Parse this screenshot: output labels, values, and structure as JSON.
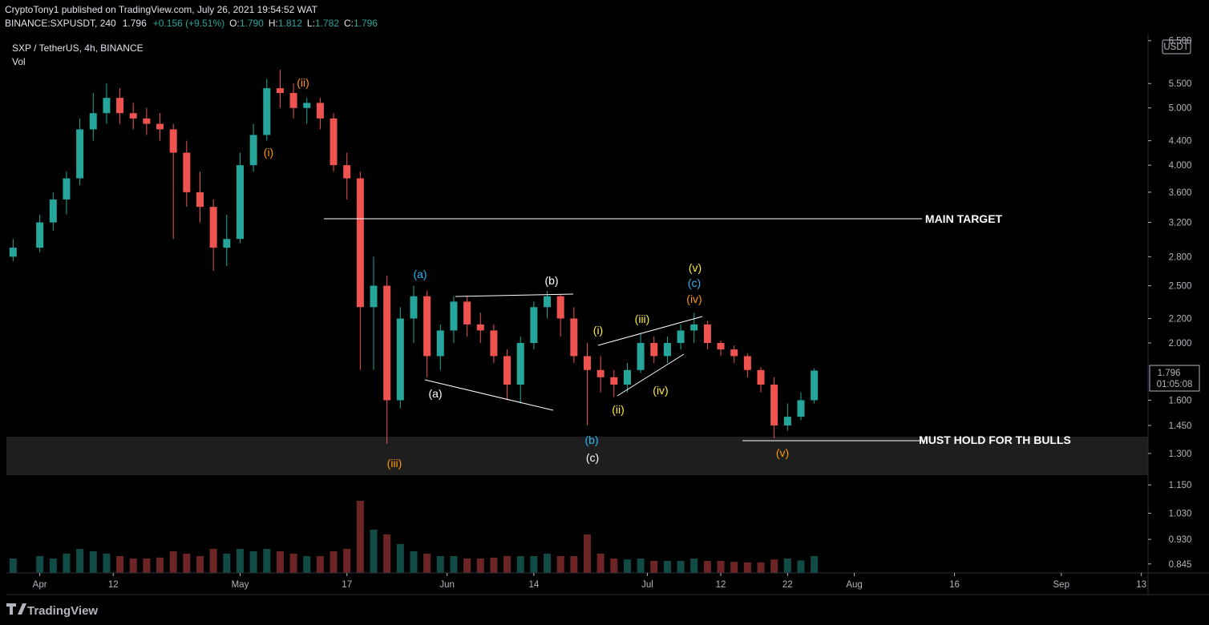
{
  "header": {
    "published": "CryptoTony1 published on TradingView.com, July 26, 2021 19:54:52 WAT",
    "symbol": "BINANCE:SXPUSDT, 240",
    "last": "1.796",
    "change": "+0.156 (+9.51%)",
    "o_label": "O:",
    "o": "1.790",
    "h_label": "H:",
    "h": "1.812",
    "l_label": "L:",
    "l": "1.782",
    "c_label": "C:",
    "c": "1.796"
  },
  "chart_data": {
    "type": "candlestick",
    "legend": "SXP / TetherUS, 4h, BINANCE",
    "volume_label": "Vol",
    "currency": "USDT",
    "price_label": "1.796",
    "countdown": "01:05:08",
    "log_scale": true,
    "up_color": "#26a69a",
    "down_color": "#ef5350",
    "xlim": [
      "03-27",
      "09-14"
    ],
    "xticks": [
      {
        "value": "04-01",
        "label": "Apr"
      },
      {
        "value": "04-12",
        "label": "12"
      },
      {
        "value": "05-01",
        "label": "May"
      },
      {
        "value": "05-17",
        "label": "17"
      },
      {
        "value": "06-01",
        "label": "Jun"
      },
      {
        "value": "06-14",
        "label": "14"
      },
      {
        "value": "07-01",
        "label": "Jul"
      },
      {
        "value": "07-12",
        "label": "12"
      },
      {
        "value": "07-22",
        "label": "22"
      },
      {
        "value": "08-01",
        "label": "Aug"
      },
      {
        "value": "08-16",
        "label": "16"
      },
      {
        "value": "09-01",
        "label": "Sep"
      },
      {
        "value": "09-13",
        "label": "13"
      }
    ],
    "ylim": [
      0.816,
      6.68
    ],
    "yticks": [
      {
        "value": 0.845,
        "label": "0.845"
      },
      {
        "value": 0.93,
        "label": "0.930"
      },
      {
        "value": 1.03,
        "label": "1.030"
      },
      {
        "value": 1.15,
        "label": "1.150"
      },
      {
        "value": 1.3,
        "label": "1.300"
      },
      {
        "value": 1.45,
        "label": "1.450"
      },
      {
        "value": 1.6,
        "label": "1.600"
      },
      {
        "value": 2,
        "label": "2.000"
      },
      {
        "value": 2.2,
        "label": "2.200"
      },
      {
        "value": 2.5,
        "label": "2.500"
      },
      {
        "value": 2.8,
        "label": "2.800"
      },
      {
        "value": 3.2,
        "label": "3.200"
      },
      {
        "value": 3.6,
        "label": "3.600"
      },
      {
        "value": 4,
        "label": "4.000"
      },
      {
        "value": 4.4,
        "label": "4.400"
      },
      {
        "value": 5,
        "label": "5.000"
      },
      {
        "value": 5.5,
        "label": "5.500"
      },
      {
        "value": 6.5,
        "label": "6.500"
      }
    ],
    "x": [
      "03-28",
      "04-01",
      "04-03",
      "04-05",
      "04-07",
      "04-09",
      "04-11",
      "04-13",
      "04-15",
      "04-17",
      "04-19",
      "04-21",
      "04-23",
      "04-25",
      "04-27",
      "04-29",
      "05-01",
      "05-03",
      "05-05",
      "05-07",
      "05-09",
      "05-11",
      "05-13",
      "05-15",
      "05-17",
      "05-19",
      "05-21",
      "05-23",
      "05-25",
      "05-27",
      "05-29",
      "05-31",
      "06-02",
      "06-04",
      "06-06",
      "06-08",
      "06-10",
      "06-12",
      "06-14",
      "06-16",
      "06-18",
      "06-20",
      "06-22",
      "06-24",
      "06-26",
      "06-28",
      "06-30",
      "07-02",
      "07-04",
      "07-06",
      "07-08",
      "07-10",
      "07-12",
      "07-14",
      "07-16",
      "07-18",
      "07-20",
      "07-22",
      "07-24",
      "07-26"
    ],
    "open": [
      2.8,
      2.9,
      3.2,
      3.5,
      3.8,
      4.6,
      4.9,
      5.2,
      4.9,
      4.8,
      4.7,
      4.6,
      4.2,
      3.6,
      3.4,
      2.9,
      3.0,
      4.0,
      4.5,
      5.4,
      5.3,
      5.0,
      5.1,
      4.8,
      4.0,
      3.8,
      2.3,
      2.5,
      1.6,
      2.2,
      2.4,
      1.9,
      2.1,
      2.35,
      2.15,
      2.1,
      1.9,
      1.7,
      2.0,
      2.3,
      2.4,
      2.2,
      1.9,
      1.8,
      1.75,
      1.7,
      1.8,
      2.0,
      1.9,
      2.0,
      2.1,
      2.15,
      2.0,
      1.95,
      1.9,
      1.8,
      1.7,
      1.45,
      1.5,
      1.6
    ],
    "high": [
      3.0,
      3.3,
      3.6,
      3.9,
      4.8,
      5.3,
      5.5,
      5.4,
      5.1,
      5.0,
      4.9,
      4.7,
      4.4,
      3.9,
      3.5,
      3.3,
      4.2,
      4.7,
      5.6,
      5.8,
      5.5,
      5.2,
      5.2,
      4.9,
      4.2,
      3.9,
      2.8,
      2.6,
      2.3,
      2.5,
      2.45,
      2.15,
      2.4,
      2.4,
      2.25,
      2.15,
      1.95,
      2.05,
      2.35,
      2.45,
      2.42,
      2.3,
      2.0,
      1.9,
      1.8,
      1.85,
      2.08,
      2.05,
      2.05,
      2.15,
      2.25,
      2.18,
      2.02,
      1.98,
      1.92,
      1.82,
      1.75,
      1.58,
      1.65,
      1.812
    ],
    "low": [
      2.75,
      2.85,
      3.1,
      3.3,
      3.7,
      4.4,
      4.7,
      4.7,
      4.6,
      4.5,
      4.4,
      3.0,
      3.4,
      3.2,
      2.65,
      2.7,
      2.95,
      3.9,
      4.4,
      5.0,
      4.8,
      4.7,
      4.6,
      3.9,
      3.5,
      1.8,
      1.8,
      1.35,
      1.55,
      2.0,
      1.75,
      1.8,
      2.0,
      2.05,
      2.0,
      1.85,
      1.6,
      1.58,
      1.95,
      2.2,
      2.05,
      1.85,
      1.45,
      1.65,
      1.62,
      1.65,
      1.78,
      1.85,
      1.85,
      1.95,
      2.0,
      1.95,
      1.9,
      1.85,
      1.75,
      1.65,
      1.38,
      1.42,
      1.48,
      1.58
    ],
    "close": [
      2.9,
      3.2,
      3.5,
      3.8,
      4.6,
      4.9,
      5.2,
      4.9,
      4.8,
      4.7,
      4.6,
      4.2,
      3.6,
      3.4,
      2.9,
      3.0,
      4.0,
      4.5,
      5.4,
      5.3,
      5.0,
      5.1,
      4.8,
      4.0,
      3.8,
      2.3,
      2.5,
      1.6,
      2.2,
      2.4,
      1.9,
      2.1,
      2.35,
      2.15,
      2.1,
      1.9,
      1.7,
      2.0,
      2.3,
      2.4,
      2.2,
      1.9,
      1.8,
      1.75,
      1.7,
      1.8,
      2.0,
      1.9,
      2.0,
      2.1,
      2.15,
      2.0,
      1.95,
      1.9,
      1.8,
      1.7,
      1.45,
      1.5,
      1.6,
      1.796
    ],
    "volume": [
      3,
      3.5,
      3,
      4,
      5,
      4.5,
      4,
      3.5,
      3,
      3,
      3.2,
      4.5,
      4,
      3.5,
      5,
      4,
      5,
      4.5,
      5,
      4.5,
      4,
      3.5,
      3.5,
      4.5,
      5,
      15,
      9,
      8,
      6,
      4.5,
      4,
      3.5,
      3.5,
      3,
      3,
      3.2,
      3.5,
      3.5,
      3.5,
      4,
      3.5,
      3.5,
      8,
      4,
      3,
      2.8,
      3,
      2.5,
      2.5,
      2.5,
      3,
      2.5,
      2.5,
      2.3,
      2.2,
      2.2,
      2.8,
      3,
      2.6,
      3.5
    ],
    "annotations": [
      {
        "text": "(i)",
        "color": "#ff9800"
      },
      {
        "text": "(ii)",
        "color": "#ff9800"
      },
      {
        "text": "(iii)",
        "color": "#ff9800"
      },
      {
        "text": "(a)",
        "color": "#29b6f6"
      },
      {
        "text": "(b)",
        "color": "#ffffff"
      },
      {
        "text": "(a)",
        "color": "#ffffff"
      },
      {
        "text": "(b)",
        "color": "#29b6f6"
      },
      {
        "text": "(c)",
        "color": "#ffffff"
      },
      {
        "text": "(i)",
        "color": "#ffeb3b"
      },
      {
        "text": "(ii)",
        "color": "#ffeb3b"
      },
      {
        "text": "(iii)",
        "color": "#ffeb3b"
      },
      {
        "text": "(iv)",
        "color": "#ffeb3b"
      },
      {
        "text": "(v)",
        "color": "#ffeb3b"
      },
      {
        "text": "(c)",
        "color": "#29b6f6"
      },
      {
        "text": "(iv)",
        "color": "#ff9800"
      },
      {
        "text": "(v)",
        "color": "#ff9800"
      },
      {
        "text": "MAIN TARGET",
        "color": "#ffffff"
      },
      {
        "text": "MUST HOLD FOR TH BULLS",
        "color": "#ffffff"
      }
    ]
  },
  "footer": {
    "brand": "TradingView"
  }
}
